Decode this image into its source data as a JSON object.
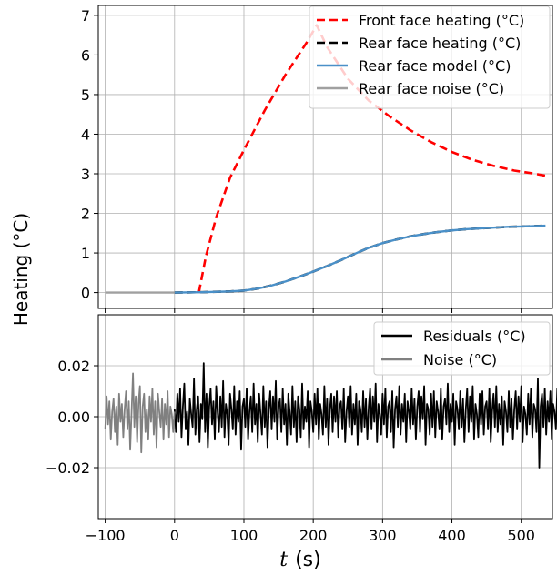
{
  "figure": {
    "ylabel": "Heating (°C)",
    "xlabel_var": "t",
    "xlabel_unit": "(s)"
  },
  "chart_data": [
    {
      "type": "line",
      "xlim": [
        -110,
        545
      ],
      "ylim": [
        -0.4,
        7.25
      ],
      "xticks": [
        -100,
        0,
        100,
        200,
        300,
        400,
        500
      ],
      "yticks": [
        0,
        1,
        2,
        3,
        4,
        5,
        6,
        7
      ],
      "ytick_labels": [
        "0",
        "1",
        "2",
        "3",
        "4",
        "5",
        "6",
        "7"
      ],
      "grid": true,
      "legend_position": "top-right",
      "series": [
        {
          "name": "Front face heating (°C)",
          "color": "#ff0000",
          "style": "dashed",
          "x": [
            35,
            45,
            60,
            80,
            100,
            130,
            160,
            190,
            205,
            220,
            250,
            280,
            310,
            340,
            370,
            400,
            430,
            460,
            490,
            520,
            535
          ],
          "y": [
            0.0,
            0.9,
            1.9,
            2.9,
            3.6,
            4.6,
            5.5,
            6.3,
            6.75,
            6.2,
            5.4,
            4.85,
            4.45,
            4.1,
            3.8,
            3.55,
            3.35,
            3.2,
            3.08,
            3.0,
            2.95
          ]
        },
        {
          "name": "Rear face heating (°C)",
          "color": "#000000",
          "style": "dashed",
          "x": [
            0,
            40,
            80,
            100,
            120,
            140,
            160,
            180,
            200,
            220,
            240,
            260,
            280,
            300,
            320,
            340,
            360,
            380,
            400,
            420,
            440,
            460,
            480,
            500,
            520,
            535
          ],
          "y": [
            0.0,
            0.01,
            0.03,
            0.05,
            0.1,
            0.18,
            0.28,
            0.4,
            0.53,
            0.67,
            0.82,
            0.98,
            1.13,
            1.25,
            1.34,
            1.42,
            1.48,
            1.53,
            1.57,
            1.6,
            1.62,
            1.64,
            1.66,
            1.67,
            1.68,
            1.69
          ]
        },
        {
          "name": "Rear face model (°C)",
          "color": "#4a90c8",
          "style": "solid",
          "x": [
            0,
            40,
            80,
            100,
            120,
            140,
            160,
            180,
            200,
            220,
            240,
            260,
            280,
            300,
            320,
            340,
            360,
            380,
            400,
            420,
            440,
            460,
            480,
            500,
            520,
            535
          ],
          "y": [
            0.0,
            0.01,
            0.03,
            0.05,
            0.1,
            0.18,
            0.28,
            0.4,
            0.53,
            0.67,
            0.82,
            0.98,
            1.13,
            1.25,
            1.34,
            1.42,
            1.48,
            1.53,
            1.57,
            1.6,
            1.62,
            1.64,
            1.66,
            1.67,
            1.68,
            1.69
          ]
        },
        {
          "name": "Rear face noise (°C)",
          "color": "#a0a0a0",
          "style": "solid",
          "x": [
            -100,
            -75,
            -50,
            -25,
            0
          ],
          "y": [
            0.0,
            0.0,
            0.0,
            0.0,
            0.0
          ]
        }
      ]
    },
    {
      "type": "line",
      "xlim": [
        -110,
        545
      ],
      "ylim": [
        -0.04,
        0.04
      ],
      "xticks": [
        -100,
        0,
        100,
        200,
        300,
        400,
        500
      ],
      "xtick_labels": [
        "−100",
        "0",
        "100",
        "200",
        "300",
        "400",
        "500"
      ],
      "yticks": [
        -0.02,
        0.0,
        0.02
      ],
      "ytick_labels": [
        "−0.02",
        "0.00",
        "0.02"
      ],
      "grid": true,
      "legend_position": "top-right",
      "series": [
        {
          "name": "Residuals (°C)",
          "color": "#000000",
          "style": "solid",
          "x_start": 0,
          "x_step": 2,
          "y": [
            0.003,
            -0.006,
            0.009,
            -0.002,
            0.011,
            -0.008,
            0.004,
            0.013,
            -0.005,
            0.002,
            -0.011,
            0.007,
            0.001,
            -0.004,
            0.015,
            -0.007,
            0.003,
            0.008,
            -0.01,
            0.005,
            -0.001,
            0.021,
            -0.006,
            0.009,
            -0.012,
            0.004,
            0.011,
            -0.003,
            0.006,
            -0.009,
            0.012,
            0.002,
            -0.006,
            0.008,
            -0.004,
            0.014,
            -0.008,
            0.005,
            0.001,
            -0.011,
            0.009,
            0.003,
            -0.005,
            0.012,
            -0.007,
            0.006,
            -0.002,
            0.01,
            -0.013,
            0.004,
            0.007,
            -0.004,
            0.011,
            -0.009,
            0.002,
            0.008,
            -0.006,
            0.013,
            -0.003,
            0.005,
            -0.01,
            0.009,
            0.001,
            -0.007,
            0.012,
            -0.004,
            0.006,
            -0.012,
            0.003,
            0.01,
            -0.005,
            0.008,
            -0.002,
            0.014,
            -0.009,
            0.004,
            0.007,
            -0.006,
            0.011,
            -0.003,
            0.005,
            -0.011,
            0.009,
            0.002,
            -0.007,
            0.012,
            -0.004,
            0.006,
            -0.01,
            0.008,
            0.003,
            -0.008,
            0.013,
            -0.005,
            0.004,
            -0.002,
            0.01,
            -0.012,
            0.006,
            0.002,
            -0.006,
            0.009,
            -0.003,
            0.011,
            -0.009,
            0.005,
            0.001,
            -0.007,
            0.012,
            -0.004,
            0.007,
            -0.011,
            0.003,
            0.009,
            -0.006,
            0.008,
            -0.002,
            0.01,
            -0.008,
            0.004,
            0.006,
            -0.005,
            0.011,
            -0.01,
            0.002,
            0.008,
            -0.004,
            0.012,
            -0.007,
            0.005,
            -0.003,
            0.009,
            -0.011,
            0.006,
            0.003,
            -0.006,
            0.01,
            -0.004,
            0.007,
            -0.009,
            0.004,
            0.011,
            -0.005,
            0.008,
            -0.002,
            0.013,
            -0.01,
            0.005,
            0.001,
            -0.007,
            0.009,
            -0.003,
            0.011,
            -0.008,
            0.004,
            0.006,
            -0.006,
            0.01,
            -0.012,
            0.003,
            0.008,
            -0.004,
            0.012,
            -0.007,
            0.005,
            -0.002,
            0.009,
            -0.01,
            0.006,
            0.002,
            -0.005,
            0.011,
            -0.003,
            0.007,
            -0.009,
            0.004,
            0.01,
            -0.006,
            0.008,
            -0.001,
            0.012,
            -0.011,
            0.005,
            0.003,
            -0.007,
            0.009,
            -0.004,
            0.01,
            -0.008,
            0.006,
            0.002,
            -0.005,
            0.011,
            -0.009,
            0.004,
            0.007,
            -0.003,
            0.013,
            -0.006,
            0.005,
            -0.002,
            0.009,
            -0.011,
            0.006,
            0.003,
            -0.005,
            0.01,
            -0.004,
            0.007,
            -0.01,
            0.003,
            0.011,
            -0.006,
            0.008,
            -0.002,
            0.012,
            -0.009,
            0.005,
            0.001,
            -0.008,
            0.009,
            -0.003,
            0.01,
            -0.007,
            0.004,
            0.006,
            -0.005,
            0.011,
            -0.01,
            0.002,
            0.009,
            -0.004,
            0.012,
            -0.006,
            0.005,
            -0.003,
            0.008,
            -0.011,
            0.006,
            0.002,
            -0.006,
            0.01,
            -0.004,
            0.007,
            -0.009,
            0.003,
            0.01,
            -0.005,
            0.008,
            -0.002,
            0.012,
            -0.01,
            0.004,
            0.001,
            -0.007,
            0.009,
            -0.003,
            0.011,
            -0.008,
            0.005,
            0.003,
            -0.006,
            0.015,
            -0.02,
            0.004,
            0.009,
            -0.004,
            0.011,
            -0.007,
            0.006,
            -0.002,
            0.01,
            -0.009,
            0.005,
            0.002,
            -0.005,
            0.011,
            -0.008,
            0.007
          ]
        },
        {
          "name": "Noise (°C)",
          "color": "#808080",
          "style": "solid",
          "x_start": -100,
          "x_step": 2,
          "y": [
            -0.005,
            0.008,
            -0.003,
            0.006,
            -0.009,
            0.002,
            0.007,
            -0.006,
            0.004,
            -0.011,
            0.009,
            -0.002,
            0.005,
            -0.008,
            0.003,
            0.01,
            -0.005,
            0.006,
            -0.013,
            0.002,
            0.017,
            -0.004,
            0.008,
            -0.01,
            0.005,
            0.012,
            -0.014,
            0.004,
            0.009,
            -0.006,
            0.003,
            -0.009,
            0.008,
            -0.002,
            0.011,
            -0.007,
            0.006,
            -0.012,
            0.009,
            0.002,
            -0.004,
            0.007,
            -0.009,
            0.005,
            -0.003,
            0.01,
            -0.008,
            0.004,
            0.001,
            -0.006,
            0.002
          ]
        }
      ]
    }
  ]
}
